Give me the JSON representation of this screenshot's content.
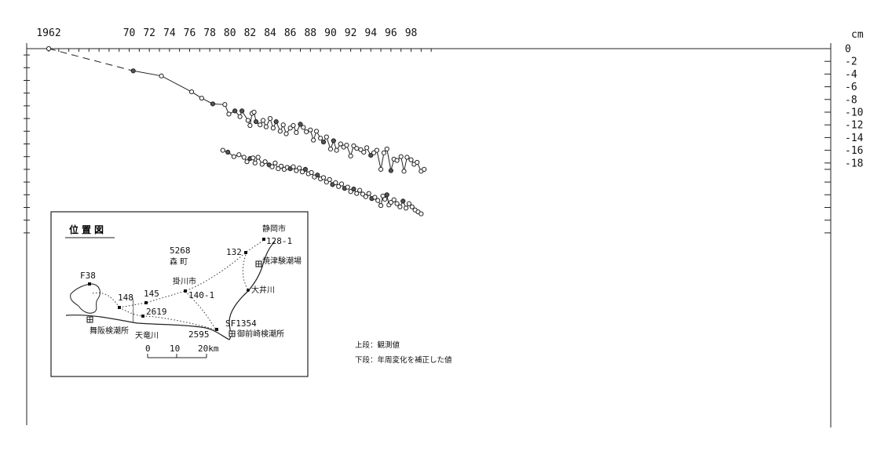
{
  "chart_data": {
    "type": "line",
    "title": "",
    "x_unit": "year",
    "y_unit": "cm",
    "x_tick_labels": [
      {
        "year": 1962,
        "label": "1962"
      },
      {
        "year": 1970,
        "label": "70"
      },
      {
        "year": 1972,
        "label": "72"
      },
      {
        "year": 1974,
        "label": "74"
      },
      {
        "year": 1976,
        "label": "76"
      },
      {
        "year": 1978,
        "label": "78"
      },
      {
        "year": 1980,
        "label": "80"
      },
      {
        "year": 1982,
        "label": "82"
      },
      {
        "year": 1984,
        "label": "84"
      },
      {
        "year": 1986,
        "label": "86"
      },
      {
        "year": 1988,
        "label": "88"
      },
      {
        "year": 1990,
        "label": "90"
      },
      {
        "year": 1992,
        "label": "92"
      },
      {
        "year": 1994,
        "label": "94"
      },
      {
        "year": 1996,
        "label": "96"
      },
      {
        "year": 1998,
        "label": "98"
      }
    ],
    "y_tick_labels": [
      "0",
      "-2",
      "-4",
      "-6",
      "-8",
      "-10",
      "-12",
      "-14",
      "-16",
      "-18"
    ],
    "y_tick_values": [
      0,
      -2,
      -4,
      -6,
      -8,
      -10,
      -12,
      -14,
      -16,
      -18
    ],
    "xlim": [
      1962,
      2000
    ],
    "ylim": [
      -30,
      0
    ],
    "grid": false,
    "series": [
      {
        "dashed_segment": [
          [
            1962.0,
            0.0
          ],
          [
            1970.4,
            -3.5
          ]
        ],
        "x": [
          1970.4,
          1973.2,
          1976.2,
          1977.2,
          1978.3,
          1979.5,
          1979.9,
          1980.5,
          1981.0,
          1981.2,
          1981.8,
          1982.0,
          1982.2,
          1982.4,
          1982.6,
          1983.0,
          1983.3,
          1983.6,
          1984.0,
          1984.3,
          1984.6,
          1985.0,
          1985.3,
          1985.6,
          1986.0,
          1986.3,
          1986.6,
          1987.0,
          1987.3,
          1987.6,
          1988.0,
          1988.3,
          1988.6,
          1989.0,
          1989.3,
          1989.6,
          1990.0,
          1990.3,
          1990.6,
          1991.0,
          1991.3,
          1991.6,
          1992.0,
          1992.3,
          1992.6,
          1993.0,
          1993.3,
          1993.6,
          1994.0,
          1994.3,
          1994.6,
          1995.0,
          1995.3,
          1995.6,
          1996.0,
          1996.3,
          1996.6,
          1997.0,
          1997.3,
          1997.6,
          1998.0,
          1998.3,
          1998.6,
          1999.0,
          1999.3
        ],
        "values": [
          -3.5,
          -4.3,
          -6.8,
          -7.8,
          -8.7,
          -8.8,
          -10.3,
          -9.8,
          -10.7,
          -9.8,
          -11.3,
          -12.1,
          -10.2,
          -10.0,
          -11.5,
          -12.0,
          -11.3,
          -12.3,
          -11.0,
          -12.5,
          -11.5,
          -13.0,
          -12.0,
          -13.4,
          -12.5,
          -12.1,
          -13.2,
          -11.9,
          -12.4,
          -13.1,
          -12.8,
          -14.4,
          -13.0,
          -14.1,
          -14.7,
          -13.9,
          -15.8,
          -14.5,
          -16.0,
          -15.0,
          -15.5,
          -15.2,
          -16.9,
          -15.3,
          -15.7,
          -15.9,
          -16.3,
          -15.6,
          -16.8,
          -16.4,
          -16.0,
          -19.0,
          -16.4,
          -15.8,
          -19.2,
          -17.4,
          -17.6,
          -17.0,
          -19.3,
          -17.1,
          -17.5,
          -18.2,
          -17.9,
          -19.3,
          -19.0
        ],
        "filled_indices": [
          0,
          4,
          7,
          9,
          14,
          20,
          27,
          34,
          37,
          48,
          54
        ]
      },
      {
        "x": [
          1979.3,
          1979.8,
          1980.4,
          1980.9,
          1981.4,
          1981.7,
          1982.0,
          1982.3,
          1982.5,
          1982.8,
          1983.2,
          1983.5,
          1983.9,
          1984.2,
          1984.5,
          1984.8,
          1985.1,
          1985.4,
          1985.7,
          1986.0,
          1986.3,
          1986.6,
          1986.9,
          1987.2,
          1987.5,
          1987.8,
          1988.1,
          1988.4,
          1988.7,
          1989.0,
          1989.3,
          1989.6,
          1989.9,
          1990.2,
          1990.5,
          1990.8,
          1991.1,
          1991.4,
          1991.7,
          1992.0,
          1992.3,
          1992.6,
          1992.9,
          1993.2,
          1993.5,
          1993.8,
          1994.1,
          1994.4,
          1994.7,
          1995.0,
          1995.2,
          1995.4,
          1995.6,
          1995.8,
          1996.0,
          1996.3,
          1996.6,
          1996.9,
          1997.2,
          1997.5,
          1997.8,
          1998.1,
          1998.4,
          1998.7,
          1999.0
        ],
        "values": [
          -16.0,
          -16.3,
          -17.0,
          -16.7,
          -17.1,
          -17.8,
          -17.3,
          -17.2,
          -18.0,
          -17.1,
          -18.2,
          -17.8,
          -18.3,
          -18.6,
          -18.0,
          -18.9,
          -18.5,
          -19.0,
          -18.7,
          -18.9,
          -18.6,
          -19.2,
          -18.8,
          -19.4,
          -19.0,
          -19.7,
          -19.5,
          -20.2,
          -19.9,
          -20.5,
          -20.3,
          -21.0,
          -20.6,
          -21.4,
          -21.1,
          -21.7,
          -21.3,
          -22.0,
          -21.8,
          -22.5,
          -22.1,
          -22.8,
          -22.3,
          -22.9,
          -23.3,
          -22.8,
          -23.6,
          -23.4,
          -23.9,
          -24.7,
          -23.2,
          -23.7,
          -23.0,
          -24.6,
          -24.2,
          -23.8,
          -24.4,
          -24.9,
          -24.0,
          -25.1,
          -24.4,
          -24.9,
          -25.4,
          -25.7,
          -26.0
        ],
        "filled_indices": [
          1,
          6,
          12,
          19,
          24,
          28,
          33,
          37,
          40,
          46,
          52,
          58
        ]
      }
    ],
    "annotations": {
      "y_unit_label": "cm",
      "note_line1": "上段：観測値",
      "note_line2": "下段：年周変化を補正した値"
    }
  },
  "inset_map": {
    "title": "位置図",
    "labels": {
      "shizuoka": "静岡市",
      "b1281": "128-1",
      "b132": "132",
      "yaizu": "焼津験潮場",
      "b5268": "5268",
      "mori": "森 町",
      "f38": "F38",
      "kakegawa": "掛川市",
      "b1401": "140-1",
      "oigawa": "大井川",
      "b148": "148",
      "b145": "145",
      "b2619": "2619",
      "sf1354": "SF1354",
      "maisaka": "舞阪検潮所",
      "tenryu": "天竜川",
      "b2595": "2595",
      "omaezaki": "御前崎検潮所"
    },
    "scale_labels": [
      "0",
      "10",
      "20km"
    ]
  }
}
